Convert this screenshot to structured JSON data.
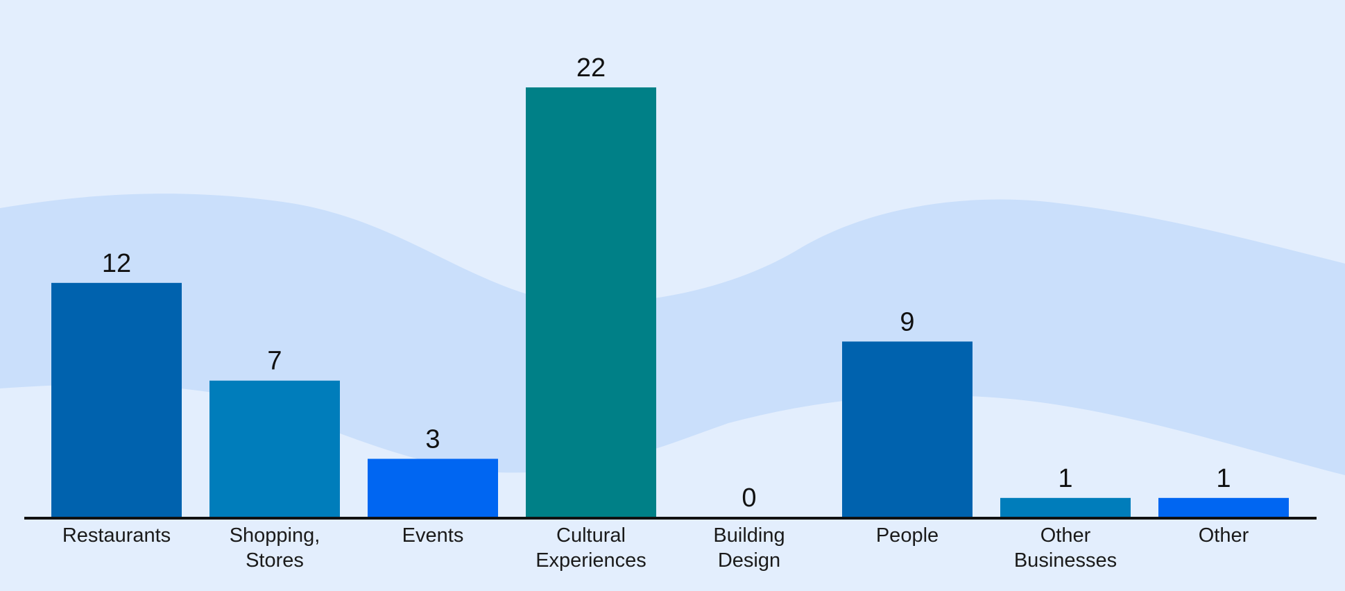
{
  "chart_data": {
    "type": "bar",
    "categories": [
      [
        "Restaurants"
      ],
      [
        "Shopping,",
        "Stores"
      ],
      [
        "Events"
      ],
      [
        "Cultural",
        "Experiences"
      ],
      [
        "Building",
        "Design"
      ],
      [
        "People"
      ],
      [
        "Other",
        "Businesses"
      ],
      [
        "Other"
      ]
    ],
    "values": [
      12,
      7,
      3,
      22,
      0,
      9,
      1,
      1
    ],
    "value_labels": [
      "12",
      "7",
      "3",
      "22",
      "0",
      "9",
      "1",
      "1"
    ],
    "colors": [
      "#0062ae",
      "#007dbb",
      "#0066f2",
      "#008087",
      "#0062ae",
      "#0062ae",
      "#007dbb",
      "#0066f2"
    ],
    "ylim": [
      0,
      22
    ],
    "grid": false,
    "legend": "none",
    "background_color": "#e3eefd",
    "wave_color": "#cadffb",
    "axis_color": "#111111"
  }
}
